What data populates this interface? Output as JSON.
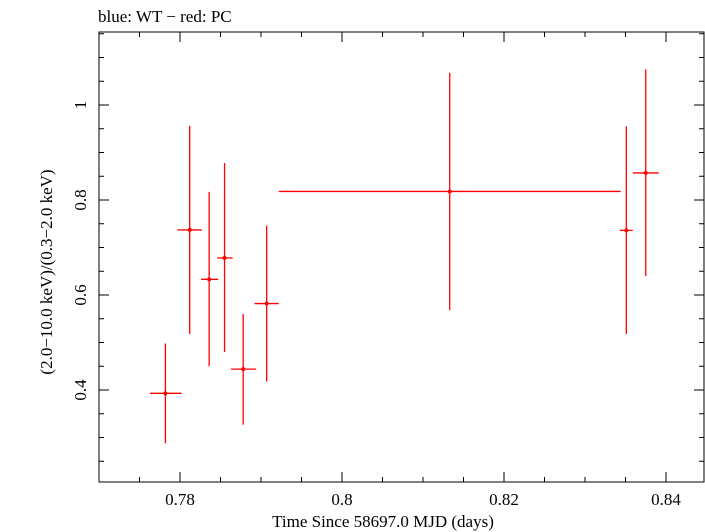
{
  "chart_data": {
    "type": "scatter",
    "title": "blue: WT − red: PC",
    "xlabel": "Time Since 58697.0 MJD (days)",
    "ylabel": "(2.0−10.0 keV)/(0.3−2.0 keV)",
    "xlim": [
      0.77,
      0.844
    ],
    "ylim": [
      0.2,
      1.15
    ],
    "xticks": [
      {
        "value": 0.78,
        "label": "0.78"
      },
      {
        "value": 0.8,
        "label": "0.8"
      },
      {
        "value": 0.82,
        "label": "0.82"
      },
      {
        "value": 0.84,
        "label": "0.84"
      }
    ],
    "yticks": [
      {
        "value": 0.4,
        "label": "0.4"
      },
      {
        "value": 0.6,
        "label": "0.6"
      },
      {
        "value": 0.8,
        "label": "0.8"
      },
      {
        "value": 1.0,
        "label": "1"
      }
    ],
    "x_minor_step": 0.005,
    "y_minor_step": 0.05,
    "grid": false,
    "series": [
      {
        "color": "#ff0000",
        "points": [
          {
            "x": 0.7782,
            "y": 0.393,
            "xlo": 0.7763,
            "xhi": 0.7802,
            "ylo": 0.288,
            "yhi": 0.498
          },
          {
            "x": 0.7812,
            "y": 0.737,
            "xlo": 0.7797,
            "xhi": 0.7827,
            "ylo": 0.518,
            "yhi": 0.956
          },
          {
            "x": 0.7836,
            "y": 0.633,
            "xlo": 0.7826,
            "xhi": 0.7847,
            "ylo": 0.45,
            "yhi": 0.817
          },
          {
            "x": 0.7855,
            "y": 0.678,
            "xlo": 0.7846,
            "xhi": 0.7865,
            "ylo": 0.48,
            "yhi": 0.878
          },
          {
            "x": 0.7878,
            "y": 0.444,
            "xlo": 0.7863,
            "xhi": 0.7894,
            "ylo": 0.327,
            "yhi": 0.56
          },
          {
            "x": 0.7907,
            "y": 0.582,
            "xlo": 0.7892,
            "xhi": 0.7922,
            "ylo": 0.418,
            "yhi": 0.746
          },
          {
            "x": 0.8133,
            "y": 0.818,
            "xlo": 0.7922,
            "xhi": 0.8344,
            "ylo": 0.568,
            "yhi": 1.068
          },
          {
            "x": 0.8351,
            "y": 0.736,
            "xlo": 0.8343,
            "xhi": 0.8359,
            "ylo": 0.518,
            "yhi": 0.955
          },
          {
            "x": 0.8375,
            "y": 0.857,
            "xlo": 0.8359,
            "xhi": 0.8391,
            "ylo": 0.64,
            "yhi": 1.075
          }
        ]
      }
    ]
  }
}
